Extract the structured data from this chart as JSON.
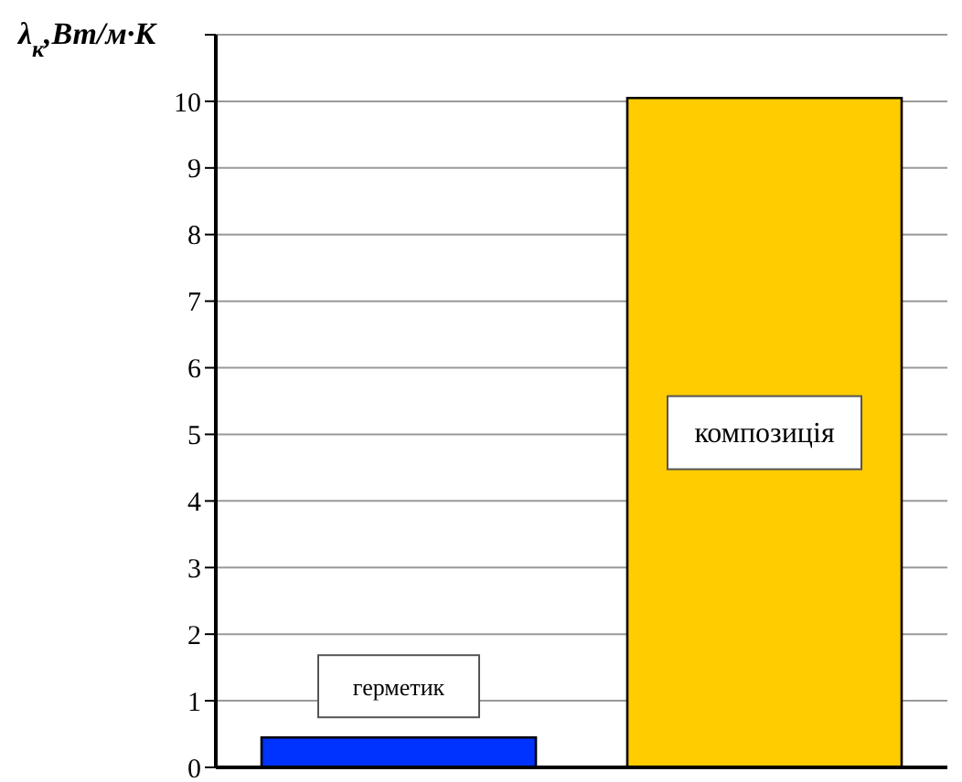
{
  "chart_data": {
    "type": "bar",
    "ylabel": "λ$_{к}$,Вт/м·К",
    "categories": [
      "герметик",
      "композиція"
    ],
    "values": [
      0.45,
      10.05
    ],
    "colors": [
      "#0033ff",
      "#ffcc00"
    ],
    "ylim": [
      0,
      11
    ],
    "yticks": [
      0,
      1,
      2,
      3,
      4,
      5,
      6,
      7,
      8,
      9,
      10,
      {
        "value": 11,
        "label": null
      }
    ],
    "grid": "y",
    "tick_labels": "y"
  }
}
